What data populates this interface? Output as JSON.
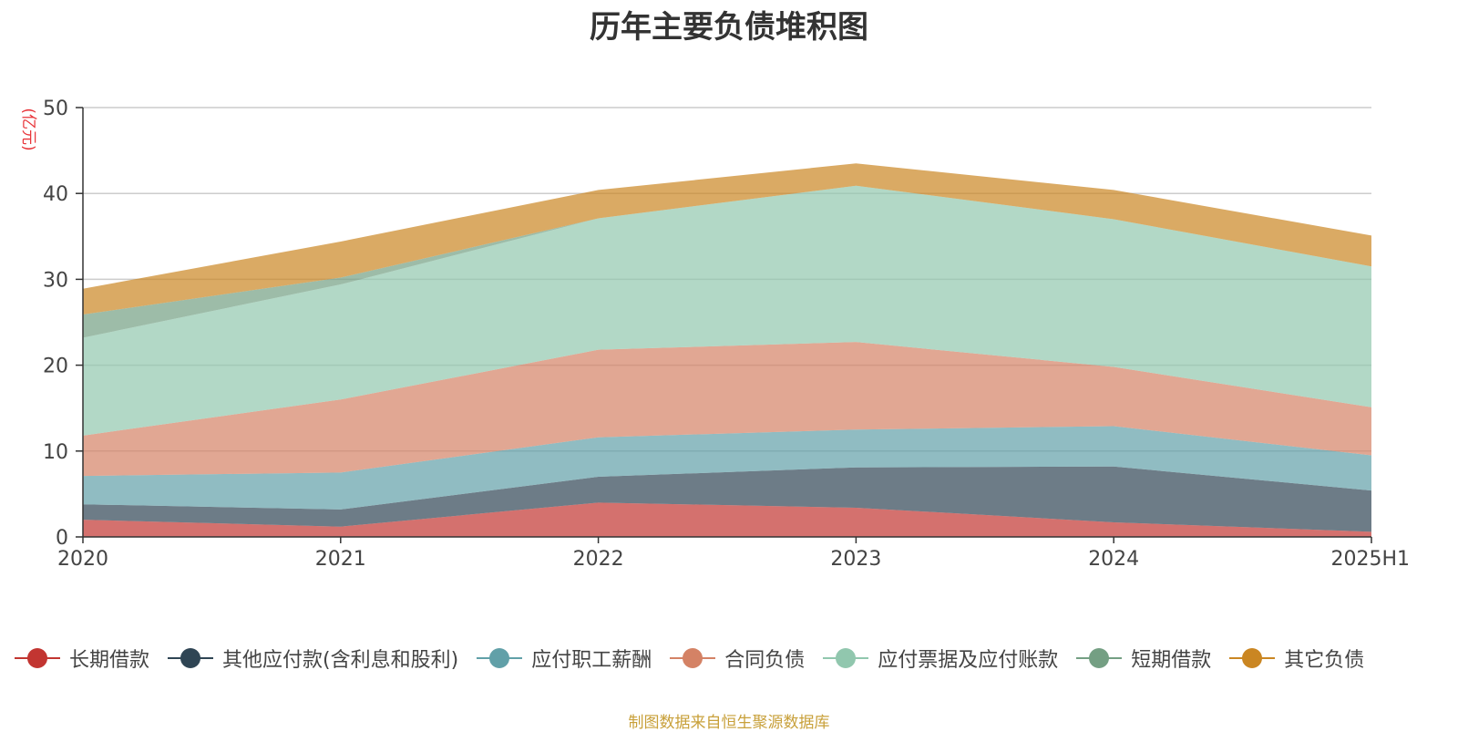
{
  "chart_data": {
    "type": "area",
    "title": "历年主要负债堆积图",
    "ylabel": "(亿元)",
    "xlabel": "",
    "categories": [
      "2020",
      "2021",
      "2022",
      "2023",
      "2024",
      "2025H1"
    ],
    "ylim": [
      0,
      50
    ],
    "yticks": [
      0,
      10,
      20,
      30,
      40,
      50
    ],
    "grid": true,
    "stacked": true,
    "legend_position": "bottom",
    "series": [
      {
        "name": "长期借款",
        "values": [
          2.0,
          1.2,
          4.0,
          3.4,
          1.7,
          0.6
        ],
        "color": "#c23531"
      },
      {
        "name": "其他应付款(含利息和股利)",
        "values": [
          1.8,
          2.0,
          3.0,
          4.7,
          6.5,
          4.8
        ],
        "color": "#2f4554"
      },
      {
        "name": "应付职工薪酬",
        "values": [
          3.3,
          4.3,
          4.6,
          4.4,
          4.7,
          4.1
        ],
        "color": "#61a0a8"
      },
      {
        "name": "合同负债",
        "values": [
          4.7,
          8.5,
          10.2,
          10.2,
          6.9,
          5.6
        ],
        "color": "#d48265"
      },
      {
        "name": "应付票据及应付账款",
        "values": [
          11.4,
          13.4,
          15.3,
          18.2,
          17.2,
          16.4
        ],
        "color": "#91c7ae"
      },
      {
        "name": "短期借款",
        "values": [
          2.7,
          0.8,
          0.0,
          0.0,
          0.0,
          0.0
        ],
        "color": "#749f83"
      },
      {
        "name": "其它负债",
        "values": [
          3.0,
          4.2,
          3.3,
          2.6,
          3.4,
          3.6
        ],
        "color": "#ca8622"
      }
    ]
  },
  "source_note": "制图数据来自恒生聚源数据库"
}
